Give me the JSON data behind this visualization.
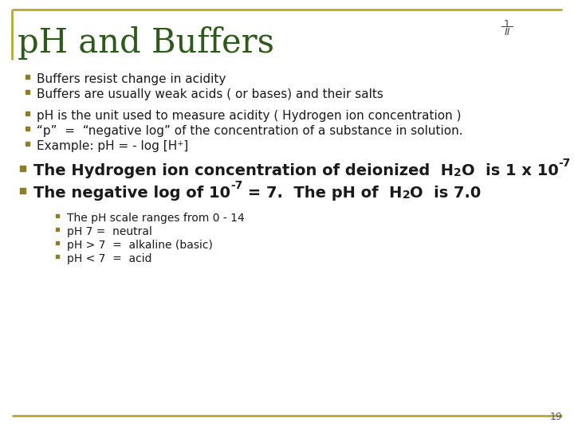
{
  "title": "pH and Buffers",
  "title_color": "#2d5a1b",
  "slide_number": "19",
  "fraction_top": "1",
  "fraction_bottom": "II",
  "border_color": "#b8a830",
  "background_color": "#ffffff",
  "bullet_color": "#8b7d2a",
  "text_color": "#1a1a1a"
}
